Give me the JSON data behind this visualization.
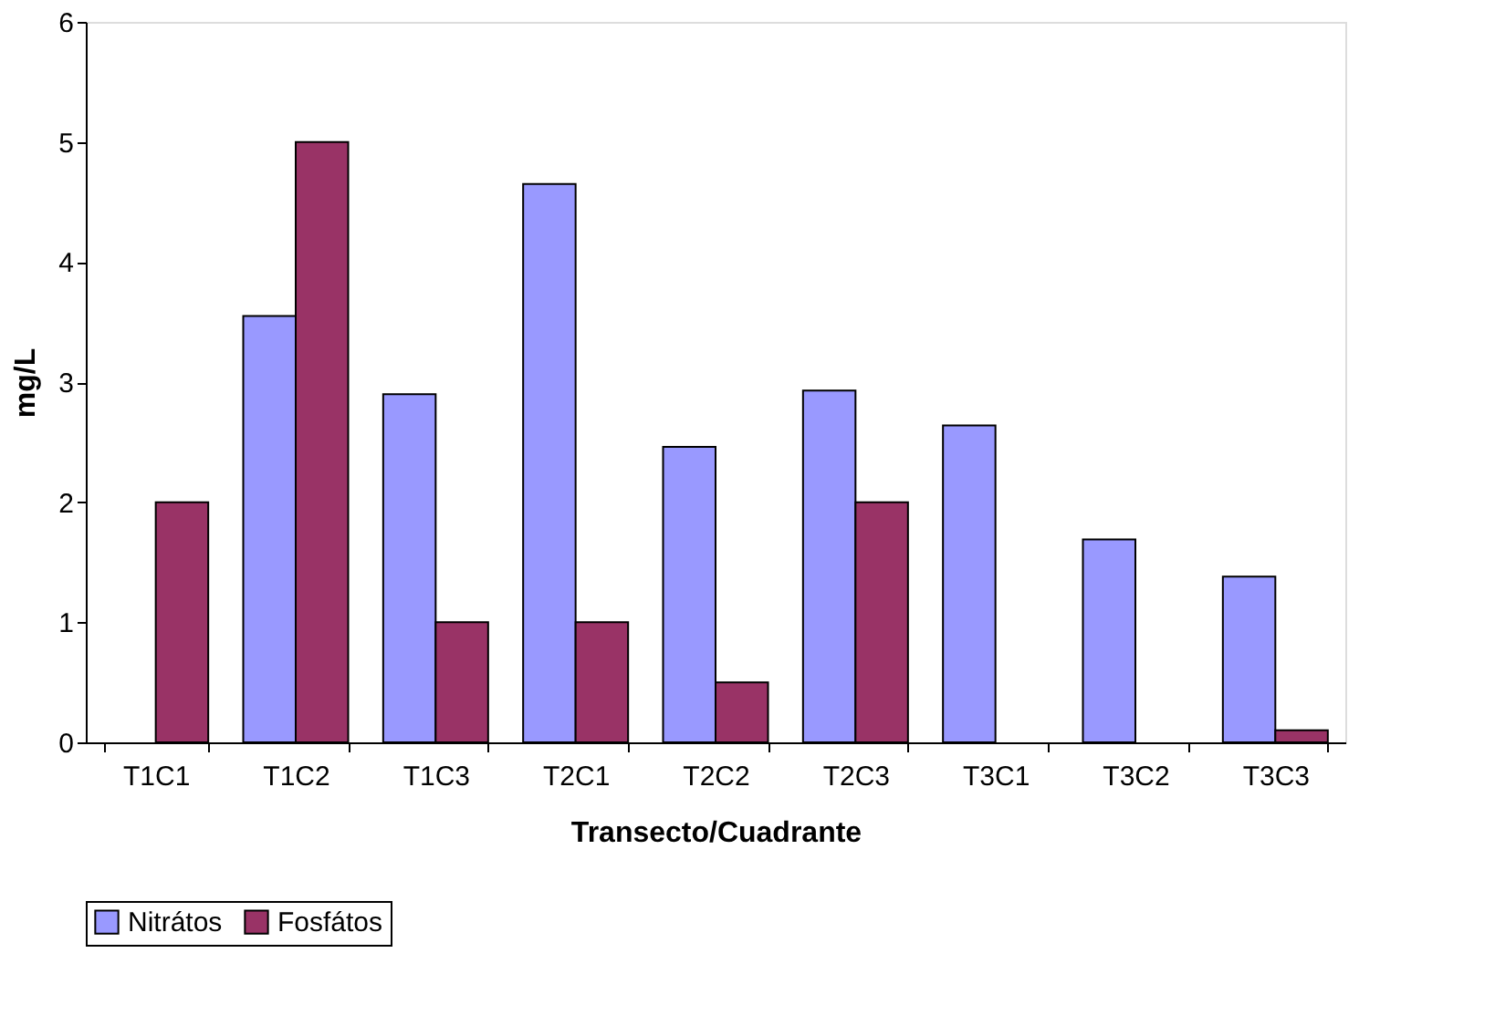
{
  "chart_data": {
    "type": "bar",
    "xlabel": "Transecto/Cuadrante",
    "ylabel": "mg/L",
    "categories": [
      "T1C1",
      "T1C2",
      "T1C3",
      "T2C1",
      "T2C2",
      "T2C3",
      "T3C1",
      "T3C2",
      "T3C3"
    ],
    "series": [
      {
        "name": "Nitrátos",
        "color": "#9999ff",
        "values": [
          null,
          3.55,
          2.9,
          4.65,
          2.46,
          2.93,
          2.64,
          1.69,
          1.38
        ]
      },
      {
        "name": "Fosfátos",
        "color": "#993366",
        "values": [
          2,
          5,
          1,
          1,
          0.5,
          2,
          null,
          null,
          0.1
        ]
      }
    ],
    "ylim": [
      0,
      6
    ],
    "yticks": [
      0,
      1,
      2,
      3,
      4,
      5,
      6
    ],
    "grid": false,
    "legend": "bottom"
  }
}
